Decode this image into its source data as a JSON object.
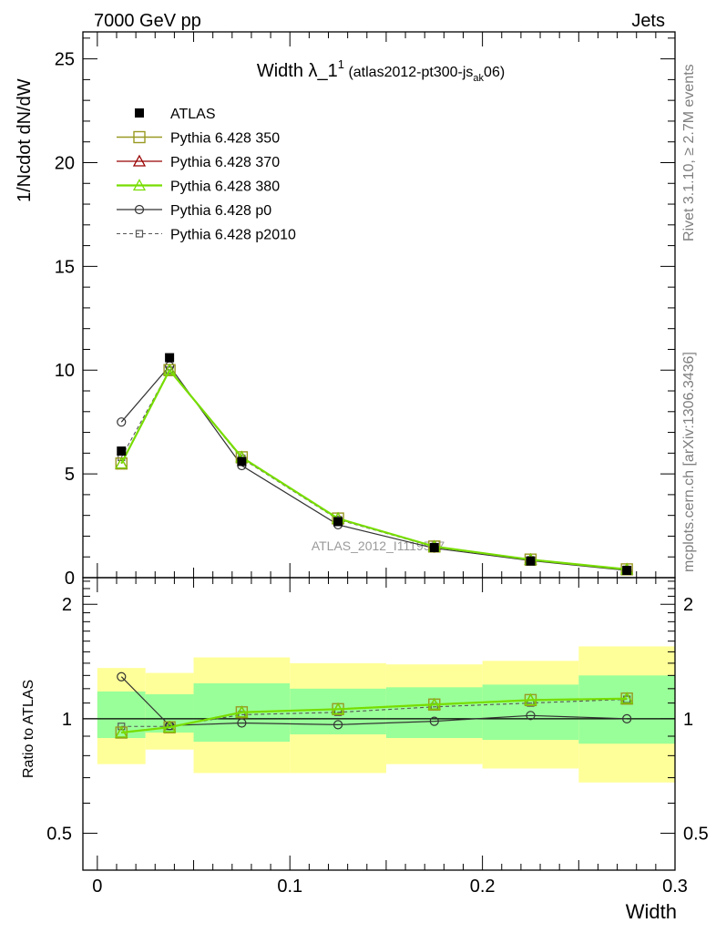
{
  "header": {
    "left": "7000 GeV pp",
    "right": "Jets"
  },
  "side_labels": {
    "rivet": "Rivet 3.1.10, ≥ 2.7M events",
    "mcplots": "mcplots.cern.ch [arXiv:1306.3436]"
  },
  "watermark": "ATLAS_2012_I1119557",
  "colors": {
    "atlas": "#000000",
    "py350": "#999922",
    "py370": "#990000",
    "py380": "#77dd00",
    "p0": "#333333",
    "p2010": "#555555",
    "band_outer": "#ffff99",
    "band_inner": "#99ff99"
  },
  "chart_data": [
    {
      "type": "line",
      "title": {
        "main": "Width λ_1",
        "sup": "1",
        "detail_pre": " (atlas2012-pt300-js",
        "detail_sub": "ak",
        "detail_post": "06)"
      },
      "xlabel": "",
      "ylabel": "1/Ncdot dN/dW",
      "xlim": [
        -0.0075,
        0.3
      ],
      "ylim": [
        0,
        26.3
      ],
      "yticks": [
        0,
        5,
        10,
        15,
        20,
        25
      ],
      "x": [
        0.0125,
        0.0375,
        0.075,
        0.125,
        0.175,
        0.225,
        0.275
      ],
      "series": [
        {
          "name": "ATLAS",
          "marker": "filled-square",
          "values": [
            6.1,
            10.6,
            5.6,
            2.7,
            1.45,
            0.8,
            0.35
          ]
        },
        {
          "name": "Pythia 6.428 350",
          "marker": "open-square",
          "values": [
            5.5,
            10.0,
            5.8,
            2.85,
            1.5,
            0.87,
            0.4
          ]
        },
        {
          "name": "Pythia 6.428 370",
          "marker": "open-triangle",
          "values": [
            5.5,
            10.0,
            5.8,
            2.85,
            1.5,
            0.87,
            0.4
          ]
        },
        {
          "name": "Pythia 6.428 380",
          "marker": "open-triangle",
          "values": [
            5.5,
            10.0,
            5.8,
            2.85,
            1.5,
            0.87,
            0.4
          ]
        },
        {
          "name": "Pythia 6.428 p0",
          "marker": "open-circle",
          "values": [
            7.5,
            10.2,
            5.4,
            2.55,
            1.42,
            0.82,
            0.35
          ]
        },
        {
          "name": "Pythia 6.428 p2010",
          "marker": "open-square-small",
          "values": [
            5.8,
            10.0,
            5.75,
            2.8,
            1.48,
            0.86,
            0.4
          ]
        }
      ],
      "legend": "top-left"
    },
    {
      "type": "line",
      "xlabel": "Width",
      "ylabel": "Ratio to ATLAS",
      "xlim": [
        -0.0075,
        0.3
      ],
      "ylim": [
        0.4,
        2.35
      ],
      "log_y": true,
      "yticks": [
        0.5,
        1,
        2
      ],
      "ytick_labels": [
        "0.5",
        "1",
        "2"
      ],
      "xticks": [
        0,
        0.1,
        0.2,
        0.3
      ],
      "xtick_labels": [
        "0",
        "0.1",
        "0.2",
        "0.3"
      ],
      "band_edges": [
        0,
        0.025,
        0.05,
        0.1,
        0.15,
        0.2,
        0.25,
        0.3
      ],
      "band_outer_low": [
        0.76,
        0.83,
        0.72,
        0.72,
        0.76,
        0.74,
        0.68
      ],
      "band_outer_high": [
        1.36,
        1.32,
        1.45,
        1.4,
        1.39,
        1.42,
        1.55
      ],
      "band_inner_low": [
        0.89,
        0.92,
        0.87,
        0.91,
        0.89,
        0.88,
        0.86
      ],
      "band_inner_high": [
        1.18,
        1.16,
        1.24,
        1.2,
        1.21,
        1.23,
        1.3
      ],
      "x": [
        0.0125,
        0.0375,
        0.075,
        0.125,
        0.175,
        0.225,
        0.275
      ],
      "series": [
        {
          "name": "Pythia 6.428 350",
          "values": [
            0.92,
            0.95,
            1.04,
            1.06,
            1.09,
            1.12,
            1.13
          ]
        },
        {
          "name": "Pythia 6.428 370",
          "values": [
            0.92,
            0.95,
            1.04,
            1.06,
            1.09,
            1.12,
            1.13
          ]
        },
        {
          "name": "Pythia 6.428 380",
          "values": [
            0.92,
            0.95,
            1.04,
            1.06,
            1.09,
            1.12,
            1.13
          ]
        },
        {
          "name": "Pythia 6.428 p0",
          "values": [
            1.29,
            0.96,
            0.975,
            0.965,
            0.985,
            1.02,
            1.0
          ]
        },
        {
          "name": "Pythia 6.428 p2010",
          "values": [
            0.955,
            0.955,
            1.025,
            1.04,
            1.075,
            1.1,
            1.125
          ]
        }
      ]
    }
  ]
}
